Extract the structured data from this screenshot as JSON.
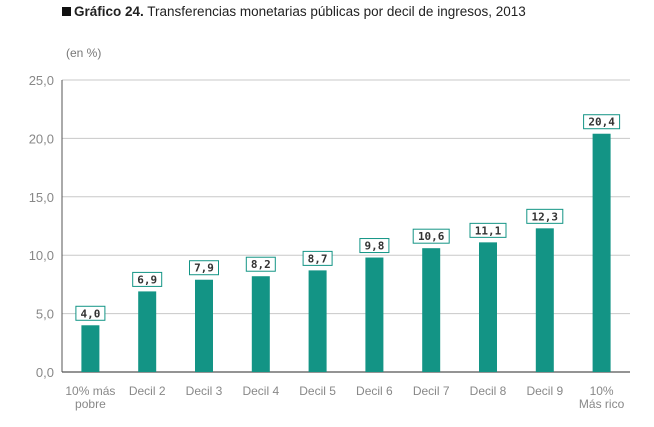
{
  "title": {
    "prefix": "Gráfico 24.",
    "text": "Transferencias monetarias públicas por decil de ingresos, 2013"
  },
  "unit_label": "(en %)",
  "colors": {
    "bar": "#139485",
    "grid": "#c8c8c8",
    "axis": "#555555",
    "label_border": "#139485"
  },
  "chart_data": {
    "type": "bar",
    "categories": [
      "10% más pobre",
      "Decil 2",
      "Decil 3",
      "Decil 4",
      "Decil 5",
      "Decil 6",
      "Decil 7",
      "Decil 8",
      "Decil 9",
      "10% Más rico"
    ],
    "category_lines": [
      [
        "10% más",
        "pobre"
      ],
      [
        "Decil 2"
      ],
      [
        "Decil 3"
      ],
      [
        "Decil 4"
      ],
      [
        "Decil 5"
      ],
      [
        "Decil 6"
      ],
      [
        "Decil 7"
      ],
      [
        "Decil 8"
      ],
      [
        "Decil 9"
      ],
      [
        "10%",
        "Más rico"
      ]
    ],
    "values": [
      4.0,
      6.9,
      7.9,
      8.2,
      8.7,
      9.8,
      10.6,
      11.1,
      12.3,
      20.4
    ],
    "value_labels": [
      "4,0",
      "6,9",
      "7,9",
      "8,2",
      "8,7",
      "9,8",
      "10,6",
      "11,1",
      "12,3",
      "20,4"
    ],
    "ylim": [
      0,
      25
    ],
    "yticks": [
      0,
      5,
      10,
      15,
      20,
      25
    ],
    "ytick_labels": [
      "0,0",
      "5,0",
      "10,0",
      "15,0",
      "20,0",
      "25,0"
    ],
    "grid": true
  }
}
